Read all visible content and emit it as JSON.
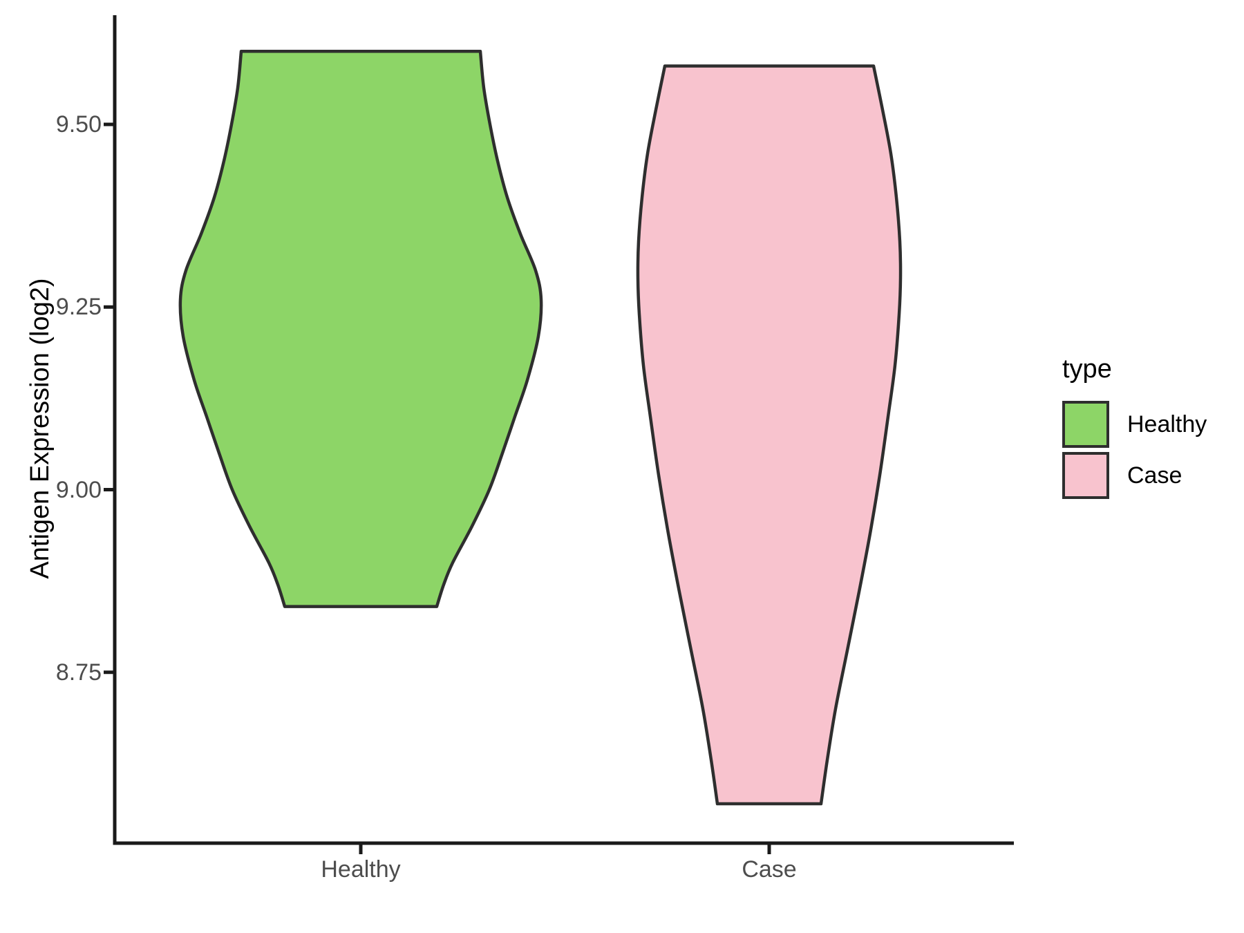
{
  "chart_data": {
    "type": "violin",
    "title": "",
    "xlabel": "",
    "ylabel": "Antigen Expression (log2)",
    "categories": [
      "Healthy",
      "Case"
    ],
    "y_ticks": [
      {
        "value": 9.5,
        "label": "9.50"
      },
      {
        "value": 9.25,
        "label": "9.25"
      },
      {
        "value": 9.0,
        "label": "9.00"
      },
      {
        "value": 8.75,
        "label": "8.75"
      }
    ],
    "ylim": [
      8.52,
      9.65
    ],
    "grid": "off",
    "legend": {
      "title": "type",
      "position": "right",
      "entries": [
        {
          "label": "Healthy",
          "color": "#8dd567"
        },
        {
          "label": "Case",
          "color": "#f8c3ce"
        }
      ]
    },
    "outline_color": "#2e2e2e",
    "axis_color": "#1a1a1a",
    "axis_text_color": "#4d4d4d",
    "series": [
      {
        "name": "Healthy",
        "fill": "#8dd567",
        "value_min": 8.84,
        "value_max": 9.6,
        "peak_density_value": 9.26,
        "profile": [
          [
            9.6,
            173
          ],
          [
            9.55,
            178
          ],
          [
            9.5,
            187
          ],
          [
            9.45,
            198
          ],
          [
            9.4,
            212
          ],
          [
            9.35,
            231
          ],
          [
            9.3,
            253
          ],
          [
            9.26,
            261
          ],
          [
            9.21,
            257
          ],
          [
            9.15,
            241
          ],
          [
            9.1,
            223
          ],
          [
            9.05,
            205
          ],
          [
            9.0,
            186
          ],
          [
            8.95,
            161
          ],
          [
            8.9,
            133
          ],
          [
            8.87,
            120
          ],
          [
            8.84,
            110
          ]
        ]
      },
      {
        "name": "Case",
        "fill": "#f8c3ce",
        "value_min": 8.57,
        "value_max": 9.58,
        "peak_density_value": 9.29,
        "profile": [
          [
            9.58,
            151
          ],
          [
            9.52,
            164
          ],
          [
            9.46,
            176
          ],
          [
            9.4,
            184
          ],
          [
            9.34,
            189
          ],
          [
            9.29,
            190
          ],
          [
            9.24,
            188
          ],
          [
            9.17,
            182
          ],
          [
            9.1,
            172
          ],
          [
            9.02,
            160
          ],
          [
            8.94,
            146
          ],
          [
            8.86,
            130
          ],
          [
            8.78,
            113
          ],
          [
            8.7,
            96
          ],
          [
            8.63,
            84
          ],
          [
            8.57,
            75
          ]
        ]
      }
    ]
  }
}
